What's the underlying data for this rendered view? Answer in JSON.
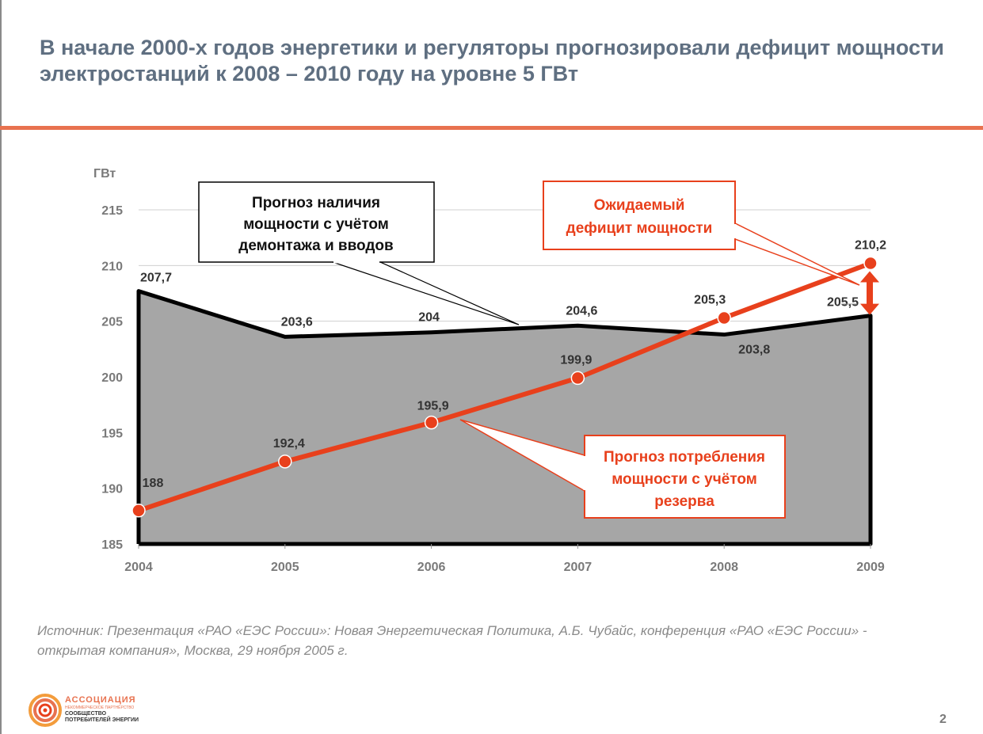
{
  "slide": {
    "title_line1": "В начале 2000-х годов энергетики и регуляторы прогнозировали дефицит мощности",
    "title_line2": "электростанций к 2008 – 2010 году на уровне 5 ГВт",
    "source_line1": "Источник: Презентация «РАО «ЕЭС России»: Новая Энергетическая Политика, А.Б. Чубайс, конференция «РАО «ЕЭС России» -",
    "source_line2": "открытая компания», Москва, 29 ноября 2005 г.",
    "page_number": "2"
  },
  "logo": {
    "title": "АССОЦИАЦИЯ",
    "subtitle": "НЕКОММЕРЧЕСКОЕ ПАРТНЁРСТВО",
    "line1": "СООБЩЕСТВО",
    "line2": "ПОТРЕБИТЕЛЕЙ ЭНЕРГИИ"
  },
  "chart_data": {
    "type": "line",
    "ylabel": "ГВт",
    "ylim": [
      185,
      215
    ],
    "yticks": [
      "215",
      "210",
      "205",
      "200",
      "195",
      "190",
      "185"
    ],
    "categories": [
      "2004",
      "2005",
      "2006",
      "2007",
      "2008",
      "2009"
    ],
    "grid": true,
    "series": [
      {
        "name": "Прогноз наличия мощности с учётом демонтажа и вводов",
        "style": "area",
        "color": "#000000",
        "fill": "#a6a6a6",
        "values": [
          207.7,
          203.6,
          204,
          204.6,
          203.8,
          205.5
        ],
        "labels": [
          "207,7",
          "203,6",
          "204",
          "204,6",
          "203,8",
          "205,5"
        ]
      },
      {
        "name": "Прогноз потребления мощности с учётом резерва",
        "style": "line-markers",
        "color": "#e8401c",
        "values": [
          188,
          192.4,
          195.9,
          199.9,
          205.3,
          210.2
        ],
        "labels": [
          "188",
          "192,4",
          "195,9",
          "199,9",
          "205,3",
          "210,2"
        ]
      }
    ],
    "annotations": {
      "supply_line1": "Прогноз наличия",
      "supply_line2": "мощности с учётом",
      "supply_line3": "демонтажа и вводов",
      "deficit_line1": "Ожидаемый",
      "deficit_line2": "дефицит мощности",
      "demand_line1": "Прогноз потребления",
      "demand_line2": "мощности с учётом",
      "demand_line3": "резерва"
    }
  }
}
